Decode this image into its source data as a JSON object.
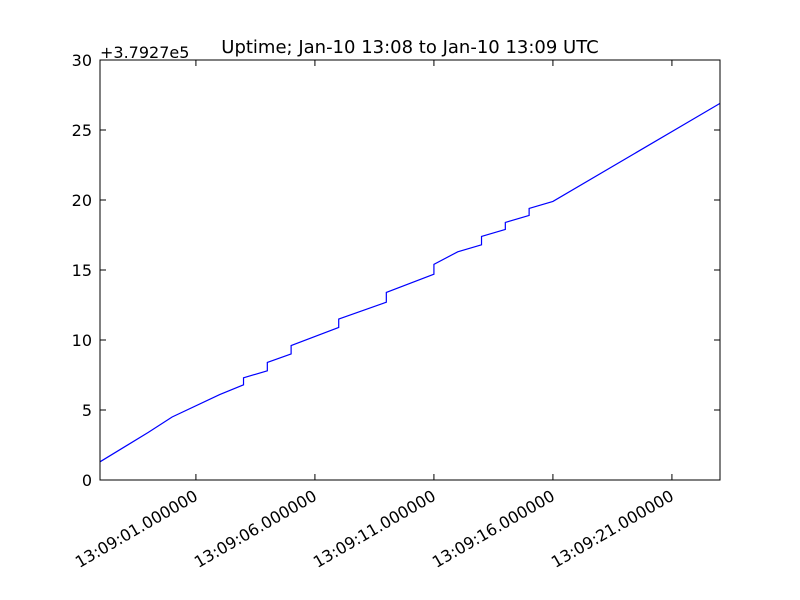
{
  "chart_data": {
    "type": "line",
    "title": "Uptime; Jan-10 13:08 to Jan-10 13:09 UTC",
    "offset_text": "+3.7927e5",
    "x": [
      "13:08:56.97",
      "13:08:59",
      "13:09:00",
      "13:09:02",
      "13:09:03",
      "13:09:03",
      "13:09:04",
      "13:09:04",
      "13:09:05",
      "13:09:05",
      "13:09:07",
      "13:09:07",
      "13:09:09",
      "13:09:09",
      "13:09:11",
      "13:09:11",
      "13:09:12",
      "13:09:13",
      "13:09:13",
      "13:09:14",
      "13:09:14",
      "13:09:15",
      "13:09:15",
      "13:09:16",
      "13:09:23.02"
    ],
    "values": [
      1.3,
      3.4,
      4.5,
      6.1,
      6.8,
      7.3,
      7.8,
      8.4,
      9.0,
      9.6,
      10.9,
      11.5,
      12.7,
      13.4,
      14.7,
      15.4,
      16.3,
      16.8,
      17.4,
      17.9,
      18.4,
      18.9,
      19.4,
      19.9,
      26.9
    ],
    "color": "#0000ff",
    "xlim": [
      "13:08:56.97",
      "13:09:23.02"
    ],
    "xticks": [
      {
        "value": "13:09:01",
        "label": "13:09:01.000000"
      },
      {
        "value": "13:09:06",
        "label": "13:09:06.000000"
      },
      {
        "value": "13:09:11",
        "label": "13:09:11.000000"
      },
      {
        "value": "13:09:16",
        "label": "13:09:16.000000"
      },
      {
        "value": "13:09:21",
        "label": "13:09:21.000000"
      }
    ],
    "ylim": [
      0,
      30
    ],
    "yticks": [
      0,
      5,
      10,
      15,
      20,
      25,
      30
    ],
    "grid": false
  }
}
